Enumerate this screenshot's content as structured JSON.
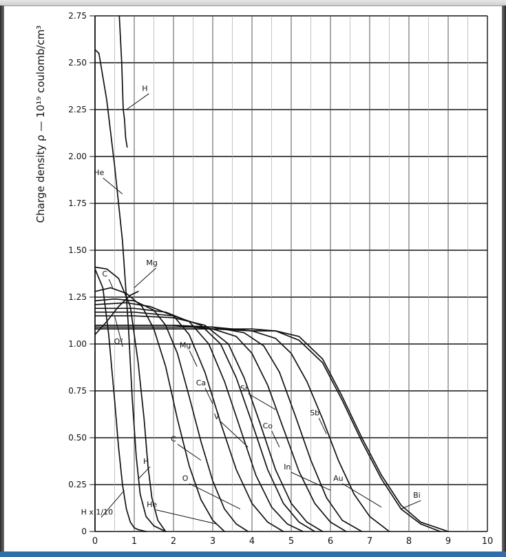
{
  "colors": {
    "ink": "#111111",
    "frame": "#9a9a9a",
    "accent_bar": "#2f6ea8"
  },
  "chart_data": {
    "type": "line",
    "title": "",
    "ylabel": "Charge density  ρ — 10¹⁹ coulomb/cm³",
    "xlabel": "",
    "xlim": [
      0,
      10
    ],
    "ylim": [
      0,
      2.75
    ],
    "grid": true,
    "x_ticks": [
      "0",
      "1",
      "2",
      "3",
      "4",
      "5",
      "6",
      "7",
      "8",
      "9",
      "10"
    ],
    "y_ticks": [
      "0",
      "0.25",
      "0.50",
      "0.75",
      "1.00",
      "1.25",
      "1.50",
      "1.75",
      "2.00",
      "2.25",
      "2.50",
      "2.75"
    ],
    "series": [
      {
        "name": "He",
        "x": [
          0,
          0.1,
          0.3,
          0.5,
          0.7,
          0.85,
          0.95,
          1.05,
          1.15,
          1.3,
          1.5,
          1.8
        ],
        "y": [
          2.57,
          2.55,
          2.3,
          1.95,
          1.55,
          1.1,
          0.7,
          0.4,
          0.2,
          0.08,
          0.03,
          0
        ]
      },
      {
        "name": "H",
        "x": [
          0.62,
          0.68,
          0.72,
          0.75,
          0.78,
          0.82
        ],
        "y": [
          2.75,
          2.5,
          2.25,
          2.2,
          2.1,
          2.05
        ]
      },
      {
        "name": "H x 1/10",
        "x": [
          0,
          0.2,
          0.35,
          0.5,
          0.6,
          0.7,
          0.8,
          0.9,
          1.0,
          1.1,
          1.3
        ],
        "y": [
          1.4,
          1.3,
          1.05,
          0.7,
          0.45,
          0.25,
          0.12,
          0.05,
          0.02,
          0.01,
          0
        ]
      },
      {
        "name": "Mg",
        "x": [
          0,
          0.3,
          0.6,
          0.9,
          1.1,
          1.25,
          1.35,
          1.45,
          1.6,
          1.8
        ],
        "y": [
          1.41,
          1.4,
          1.35,
          1.2,
          0.9,
          0.6,
          0.35,
          0.18,
          0.06,
          0
        ]
      },
      {
        "name": "C",
        "x": [
          0,
          0.4,
          0.8,
          1.2,
          1.5,
          1.8,
          2.1,
          2.4,
          2.7,
          3.0,
          3.3
        ],
        "y": [
          1.28,
          1.3,
          1.27,
          1.2,
          1.08,
          0.88,
          0.6,
          0.35,
          0.17,
          0.06,
          0
        ]
      },
      {
        "name": "O",
        "x": [
          0,
          0.5,
          1.0,
          1.5,
          1.8,
          2.1,
          2.4,
          2.7,
          3.0,
          3.3,
          3.6,
          3.9
        ],
        "y": [
          1.23,
          1.24,
          1.23,
          1.18,
          1.1,
          0.95,
          0.72,
          0.48,
          0.27,
          0.12,
          0.04,
          0
        ]
      },
      {
        "name": "Mg",
        "x": [
          0,
          0.8,
          1.4,
          2.0,
          2.4,
          2.8,
          3.2,
          3.6,
          4.0,
          4.4,
          4.8
        ],
        "y": [
          1.21,
          1.22,
          1.2,
          1.15,
          1.05,
          0.85,
          0.58,
          0.33,
          0.15,
          0.05,
          0
        ]
      },
      {
        "name": "Ca",
        "x": [
          0,
          1.0,
          1.8,
          2.4,
          2.9,
          3.3,
          3.7,
          4.1,
          4.5,
          4.9,
          5.3
        ],
        "y": [
          1.19,
          1.19,
          1.17,
          1.12,
          1.0,
          0.8,
          0.55,
          0.3,
          0.13,
          0.04,
          0
        ]
      },
      {
        "name": "V",
        "x": [
          0,
          1.0,
          2.0,
          2.7,
          3.2,
          3.6,
          4.0,
          4.4,
          4.8,
          5.2,
          5.6
        ],
        "y": [
          1.17,
          1.17,
          1.15,
          1.1,
          1.0,
          0.82,
          0.58,
          0.33,
          0.15,
          0.05,
          0
        ]
      },
      {
        "name": "Co",
        "x": [
          0,
          1.0,
          2.0,
          2.8,
          3.4,
          3.8,
          4.2,
          4.6,
          5.0,
          5.4,
          5.8
        ],
        "y": [
          1.15,
          1.15,
          1.14,
          1.1,
          1.0,
          0.82,
          0.58,
          0.33,
          0.15,
          0.05,
          0
        ]
      },
      {
        "name": "Sr",
        "x": [
          0,
          1.0,
          2.0,
          3.0,
          3.6,
          4.0,
          4.4,
          4.8,
          5.2,
          5.6,
          6.0,
          6.4
        ],
        "y": [
          1.1,
          1.1,
          1.1,
          1.08,
          1.04,
          0.95,
          0.78,
          0.55,
          0.32,
          0.15,
          0.05,
          0
        ]
      },
      {
        "name": "In",
        "x": [
          0,
          1.0,
          2.0,
          3.0,
          3.8,
          4.3,
          4.7,
          5.1,
          5.5,
          5.9,
          6.3,
          6.8
        ],
        "y": [
          1.1,
          1.1,
          1.1,
          1.09,
          1.06,
          0.99,
          0.85,
          0.62,
          0.38,
          0.18,
          0.06,
          0
        ]
      },
      {
        "name": "Sb",
        "x": [
          0,
          1.0,
          2.0,
          3.0,
          4.0,
          4.6,
          5.0,
          5.4,
          5.8,
          6.2,
          6.6,
          7.0,
          7.5
        ],
        "y": [
          1.09,
          1.09,
          1.09,
          1.09,
          1.07,
          1.03,
          0.95,
          0.8,
          0.6,
          0.38,
          0.2,
          0.08,
          0
        ]
      },
      {
        "name": "Au",
        "x": [
          0,
          1.0,
          2.0,
          3.0,
          4.0,
          4.6,
          5.2,
          5.8,
          6.3,
          6.8,
          7.3,
          7.8,
          8.3,
          8.8
        ],
        "y": [
          1.08,
          1.08,
          1.08,
          1.08,
          1.08,
          1.07,
          1.02,
          0.9,
          0.7,
          0.48,
          0.28,
          0.12,
          0.04,
          0
        ]
      },
      {
        "name": "Bi",
        "x": [
          0,
          1.0,
          2.0,
          3.0,
          4.0,
          4.6,
          5.2,
          5.8,
          6.3,
          6.8,
          7.3,
          7.8,
          8.3,
          9.0
        ],
        "y": [
          1.08,
          1.08,
          1.08,
          1.08,
          1.07,
          1.07,
          1.04,
          0.92,
          0.72,
          0.5,
          0.3,
          0.14,
          0.05,
          0
        ]
      },
      {
        "name": "O²",
        "x": [
          0,
          0.3,
          0.6,
          0.9,
          1.1
        ],
        "y": [
          1.05,
          1.12,
          1.2,
          1.26,
          1.28
        ]
      }
    ],
    "annotations": [
      {
        "text": "H",
        "x": 1.27,
        "y": 2.35,
        "ax": 0.8,
        "ay": 2.25
      },
      {
        "text": "He",
        "x": 0.1,
        "y": 1.9,
        "ax": 0.7,
        "ay": 1.8
      },
      {
        "text": "Mg",
        "x": 1.45,
        "y": 1.42,
        "ax": 1.0,
        "ay": 1.3
      },
      {
        "text": "C",
        "x": 0.25,
        "y": 1.36,
        "ax": 0.45,
        "ay": 1.3
      },
      {
        "text": "O²",
        "x": 0.6,
        "y": 1.0,
        "ax": 0.5,
        "ay": 1.15
      },
      {
        "text": "Mg",
        "x": 2.3,
        "y": 0.98,
        "ax": 2.6,
        "ay": 0.88
      },
      {
        "text": "Ca",
        "x": 2.7,
        "y": 0.78,
        "ax": 3.0,
        "ay": 0.68
      },
      {
        "text": "V",
        "x": 3.1,
        "y": 0.6,
        "ax": 3.9,
        "ay": 0.45
      },
      {
        "text": "Sr",
        "x": 3.8,
        "y": 0.75,
        "ax": 4.6,
        "ay": 0.65
      },
      {
        "text": "Co",
        "x": 4.4,
        "y": 0.55,
        "ax": 4.7,
        "ay": 0.45
      },
      {
        "text": "Sb",
        "x": 5.6,
        "y": 0.62,
        "ax": 5.9,
        "ay": 0.52
      },
      {
        "text": "C",
        "x": 2.0,
        "y": 0.48,
        "ax": 2.7,
        "ay": 0.38
      },
      {
        "text": "H",
        "x": 1.3,
        "y": 0.36,
        "ax": 1.1,
        "ay": 0.28
      },
      {
        "text": "O",
        "x": 2.3,
        "y": 0.27,
        "ax": 3.7,
        "ay": 0.12
      },
      {
        "text": "In",
        "x": 4.9,
        "y": 0.33,
        "ax": 6.0,
        "ay": 0.22
      },
      {
        "text": "Au",
        "x": 6.2,
        "y": 0.27,
        "ax": 7.3,
        "ay": 0.13
      },
      {
        "text": "Bi",
        "x": 8.2,
        "y": 0.18,
        "ax": 7.8,
        "ay": 0.12
      },
      {
        "text": "He",
        "x": 1.45,
        "y": 0.13,
        "ax": 3.1,
        "ay": 0.04
      },
      {
        "text": "H x 1/10",
        "x": 0.05,
        "y": 0.09,
        "ax": 0.75,
        "ay": 0.22
      }
    ]
  }
}
